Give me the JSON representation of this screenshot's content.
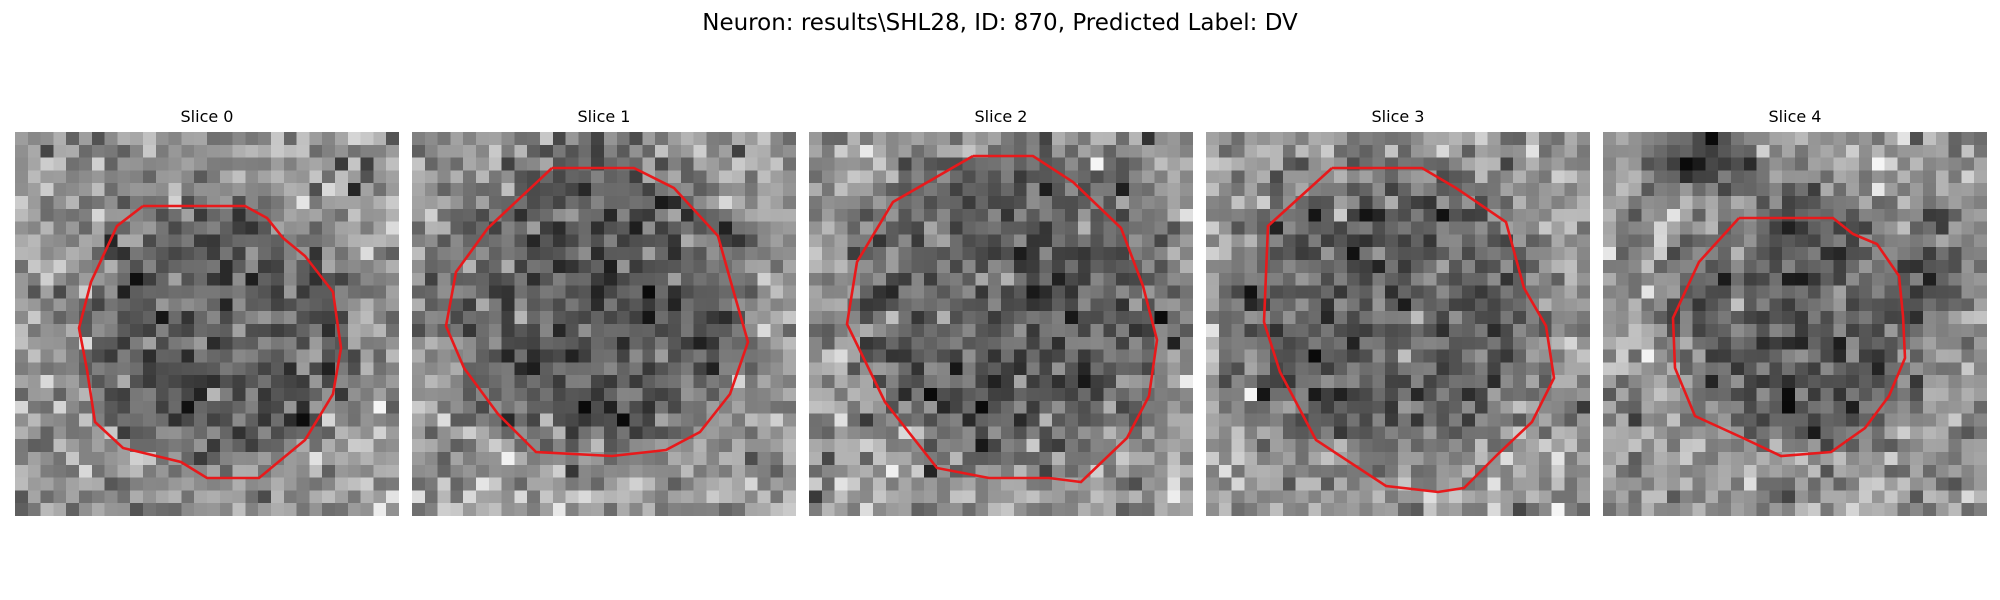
{
  "figure": {
    "title": "Neuron: results\\SHL28, ID: 870, Predicted Label: DV",
    "contour_color": "#e8191b",
    "colormap": "gray"
  },
  "slices": [
    {
      "title": "Slice 0",
      "contour_shape": "octagon-cell-boundary",
      "dark_blob": false
    },
    {
      "title": "Slice 1",
      "contour_shape": "octagon-cell-boundary",
      "dark_blob": false
    },
    {
      "title": "Slice 2",
      "contour_shape": "octagon-cell-boundary",
      "dark_blob": false
    },
    {
      "title": "Slice 3",
      "contour_shape": "octagon-cell-boundary",
      "dark_blob": false
    },
    {
      "title": "Slice 4",
      "contour_shape": "octagon-cell-boundary",
      "dark_blob": true
    }
  ]
}
